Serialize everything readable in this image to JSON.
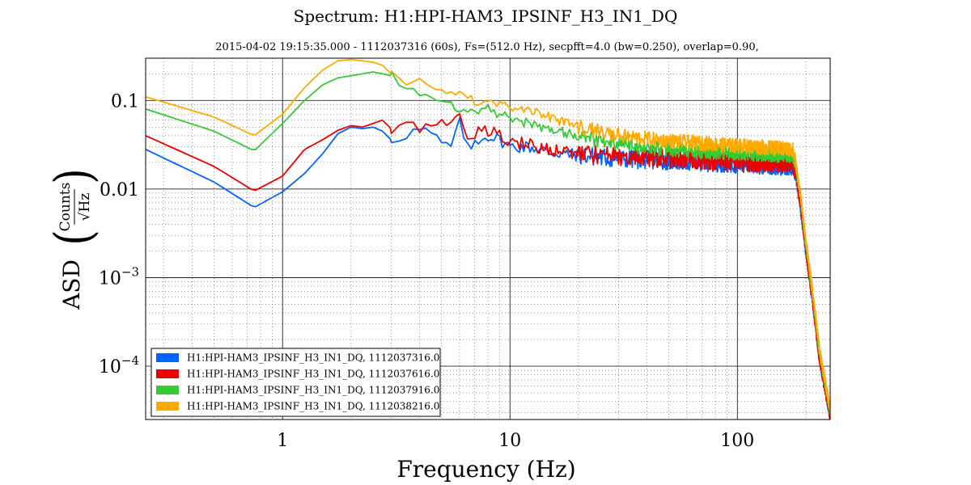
{
  "chart_data": {
    "type": "line",
    "title": "Spectrum: H1:HPI-HAM3_IPSINF_H3_IN1_DQ",
    "subtitle": "2015-04-02 19:15:35.000 - 1112037316 (60s), Fs=(512.0 Hz), secpfft=4.0 (bw=0.250), overlap=0.90,",
    "xlabel": "Frequency (Hz)",
    "ylabel": "ASD",
    "ylabel_fraction_numerator": "Counts",
    "ylabel_fraction_denominator": "√Hz",
    "xscale": "log",
    "yscale": "log",
    "xlim": [
      0.25,
      256
    ],
    "ylim": [
      2.5e-05,
      0.3
    ],
    "grid": true,
    "legend_position": "lower-left",
    "x_ticks": [
      {
        "value": 1,
        "label": "1"
      },
      {
        "value": 10,
        "label": "10"
      },
      {
        "value": 100,
        "label": "100"
      }
    ],
    "y_ticks": [
      {
        "value": 0.1,
        "label": "0.1"
      },
      {
        "value": 0.01,
        "label": "0.01"
      },
      {
        "value": 0.001,
        "label": "10",
        "exponent": "−3"
      },
      {
        "value": 0.0001,
        "label": "10",
        "exponent": "−4"
      }
    ],
    "series": [
      {
        "name": "H1:HPI-HAM3_IPSINF_H3_IN1_DQ, 1112037316.0",
        "color": "#0066ff",
        "points": [
          [
            0.25,
            0.028
          ],
          [
            0.5,
            0.012
          ],
          [
            0.75,
            0.0062
          ],
          [
            1.0,
            0.0093
          ],
          [
            1.25,
            0.015
          ],
          [
            1.5,
            0.025
          ],
          [
            1.75,
            0.042
          ],
          [
            2.0,
            0.05
          ],
          [
            2.25,
            0.048
          ],
          [
            2.5,
            0.05
          ],
          [
            2.75,
            0.045
          ],
          [
            3.0,
            0.036
          ],
          [
            3.5,
            0.042
          ],
          [
            4.0,
            0.047
          ],
          [
            4.5,
            0.042
          ],
          [
            5.0,
            0.032
          ],
          [
            5.5,
            0.03
          ],
          [
            6.0,
            0.055
          ],
          [
            6.3,
            0.04
          ],
          [
            6.6,
            0.025
          ],
          [
            7.0,
            0.035
          ],
          [
            8.0,
            0.04
          ],
          [
            9.0,
            0.036
          ],
          [
            10.0,
            0.03
          ],
          [
            12.0,
            0.03
          ],
          [
            15.0,
            0.026
          ],
          [
            20.0,
            0.024
          ],
          [
            30.0,
            0.022
          ],
          [
            50.0,
            0.021
          ],
          [
            80.0,
            0.02
          ],
          [
            120.0,
            0.019
          ],
          [
            175.0,
            0.018
          ],
          [
            180.0,
            0.015
          ],
          [
            190.0,
            0.006
          ],
          [
            200.0,
            0.002
          ],
          [
            215.0,
            0.0005
          ],
          [
            230.0,
            0.00012
          ],
          [
            256.0,
            2.8e-05
          ]
        ],
        "noise": 0.18
      },
      {
        "name": "H1:HPI-HAM3_IPSINF_H3_IN1_DQ, 1112037616.0",
        "color": "#ee0000",
        "points": [
          [
            0.25,
            0.04
          ],
          [
            0.5,
            0.018
          ],
          [
            0.75,
            0.0095
          ],
          [
            1.0,
            0.014
          ],
          [
            1.25,
            0.028
          ],
          [
            1.5,
            0.036
          ],
          [
            1.75,
            0.046
          ],
          [
            2.0,
            0.052
          ],
          [
            2.25,
            0.05
          ],
          [
            2.5,
            0.055
          ],
          [
            2.75,
            0.06
          ],
          [
            3.0,
            0.048
          ],
          [
            3.5,
            0.052
          ],
          [
            4.0,
            0.05
          ],
          [
            4.5,
            0.048
          ],
          [
            5.0,
            0.058
          ],
          [
            5.5,
            0.06
          ],
          [
            6.0,
            0.07
          ],
          [
            6.3,
            0.05
          ],
          [
            6.6,
            0.04
          ],
          [
            7.0,
            0.042
          ],
          [
            8.0,
            0.045
          ],
          [
            9.0,
            0.04
          ],
          [
            10.0,
            0.035
          ],
          [
            12.0,
            0.032
          ],
          [
            15.0,
            0.028
          ],
          [
            20.0,
            0.025
          ],
          [
            30.0,
            0.023
          ],
          [
            50.0,
            0.022
          ],
          [
            80.0,
            0.021
          ],
          [
            120.0,
            0.02
          ],
          [
            175.0,
            0.02
          ],
          [
            180.0,
            0.016
          ],
          [
            190.0,
            0.0065
          ],
          [
            200.0,
            0.0021
          ],
          [
            215.0,
            0.00052
          ],
          [
            230.0,
            0.00012
          ],
          [
            256.0,
            2.8e-05
          ]
        ],
        "noise": 0.18
      },
      {
        "name": "H1:HPI-HAM3_IPSINF_H3_IN1_DQ, 1112037916.0",
        "color": "#33cc33",
        "points": [
          [
            0.25,
            0.08
          ],
          [
            0.5,
            0.045
          ],
          [
            0.75,
            0.027
          ],
          [
            1.0,
            0.055
          ],
          [
            1.25,
            0.1
          ],
          [
            1.5,
            0.15
          ],
          [
            1.75,
            0.18
          ],
          [
            2.0,
            0.19
          ],
          [
            2.25,
            0.2
          ],
          [
            2.5,
            0.21
          ],
          [
            2.75,
            0.2
          ],
          [
            3.0,
            0.19
          ],
          [
            3.5,
            0.14
          ],
          [
            4.0,
            0.12
          ],
          [
            4.5,
            0.11
          ],
          [
            5.0,
            0.095
          ],
          [
            5.5,
            0.095
          ],
          [
            6.0,
            0.08
          ],
          [
            7.0,
            0.075
          ],
          [
            8.0,
            0.08
          ],
          [
            9.0,
            0.07
          ],
          [
            10.0,
            0.065
          ],
          [
            12.0,
            0.055
          ],
          [
            15.0,
            0.048
          ],
          [
            20.0,
            0.04
          ],
          [
            30.0,
            0.032
          ],
          [
            50.0,
            0.028
          ],
          [
            80.0,
            0.026
          ],
          [
            120.0,
            0.025
          ],
          [
            175.0,
            0.024
          ],
          [
            180.0,
            0.019
          ],
          [
            190.0,
            0.0075
          ],
          [
            200.0,
            0.0024
          ],
          [
            215.0,
            0.0006
          ],
          [
            230.0,
            0.00014
          ],
          [
            256.0,
            3e-05
          ]
        ],
        "noise": 0.14
      },
      {
        "name": "H1:HPI-HAM3_IPSINF_H3_IN1_DQ, 1112038216.0",
        "color": "#ffaa00",
        "points": [
          [
            0.25,
            0.11
          ],
          [
            0.5,
            0.065
          ],
          [
            0.75,
            0.04
          ],
          [
            1.0,
            0.07
          ],
          [
            1.25,
            0.14
          ],
          [
            1.5,
            0.22
          ],
          [
            1.75,
            0.28
          ],
          [
            2.0,
            0.29
          ],
          [
            2.25,
            0.28
          ],
          [
            2.5,
            0.27
          ],
          [
            2.75,
            0.25
          ],
          [
            3.0,
            0.2
          ],
          [
            3.5,
            0.15
          ],
          [
            4.0,
            0.17
          ],
          [
            4.5,
            0.15
          ],
          [
            5.0,
            0.12
          ],
          [
            5.5,
            0.11
          ],
          [
            6.0,
            0.14
          ],
          [
            7.0,
            0.1
          ],
          [
            8.0,
            0.1
          ],
          [
            9.0,
            0.09
          ],
          [
            10.0,
            0.085
          ],
          [
            12.0,
            0.075
          ],
          [
            15.0,
            0.065
          ],
          [
            20.0,
            0.05
          ],
          [
            30.0,
            0.04
          ],
          [
            50.0,
            0.035
          ],
          [
            80.0,
            0.032
          ],
          [
            120.0,
            0.03
          ],
          [
            175.0,
            0.028
          ],
          [
            180.0,
            0.021
          ],
          [
            190.0,
            0.008
          ],
          [
            200.0,
            0.0026
          ],
          [
            215.0,
            0.00065
          ],
          [
            230.0,
            0.00015
          ],
          [
            256.0,
            3.2e-05
          ]
        ],
        "noise": 0.14
      }
    ]
  }
}
